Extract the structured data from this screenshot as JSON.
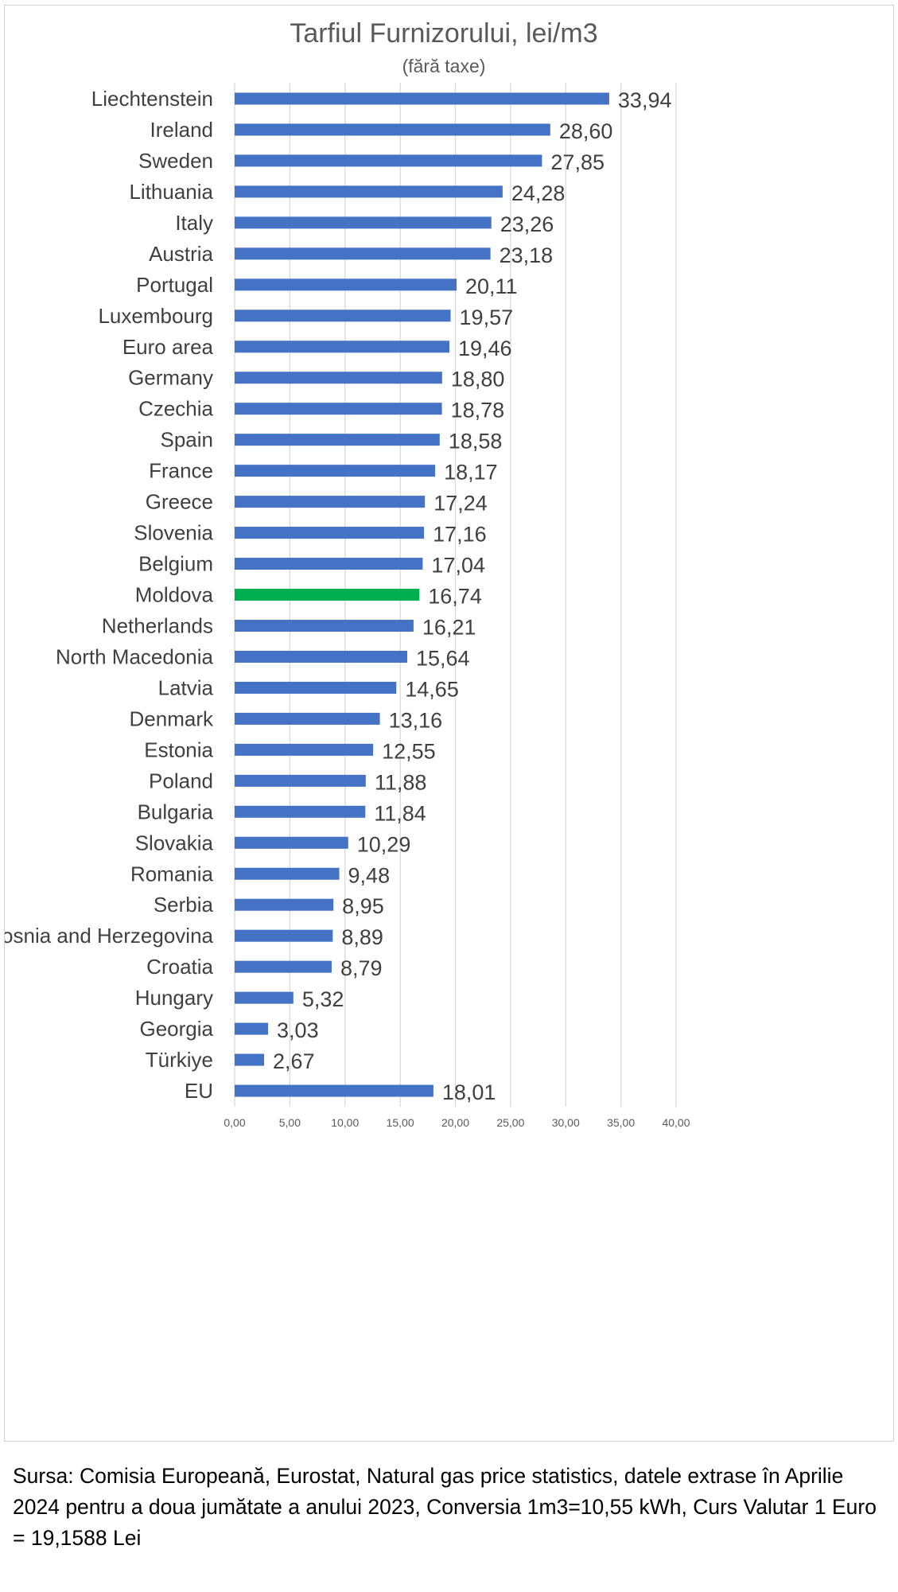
{
  "chart_data": {
    "type": "bar",
    "orientation": "horizontal",
    "title": "Tarfiul Furnizorului, lei/m3",
    "subtitle": "(fără taxe)",
    "categories": [
      "Liechtenstein",
      "Ireland",
      "Sweden",
      "Lithuania",
      "Italy",
      "Austria",
      "Portugal",
      "Luxembourg",
      "Euro area",
      "Germany",
      "Czechia",
      "Spain",
      "France",
      "Greece",
      "Slovenia",
      "Belgium",
      "Moldova",
      "Netherlands",
      "North Macedonia",
      "Latvia",
      "Denmark",
      "Estonia",
      "Poland",
      "Bulgaria",
      "Slovakia",
      "Romania",
      "Serbia",
      "Bosnia and Herzegovina",
      "Croatia",
      "Hungary",
      "Georgia",
      "Türkiye",
      "EU"
    ],
    "values": [
      33.94,
      28.6,
      27.85,
      24.28,
      23.26,
      23.18,
      20.11,
      19.57,
      19.46,
      18.8,
      18.78,
      18.58,
      18.17,
      17.24,
      17.16,
      17.04,
      16.74,
      16.21,
      15.64,
      14.65,
      13.16,
      12.55,
      11.88,
      11.84,
      10.29,
      9.48,
      8.95,
      8.89,
      8.79,
      5.32,
      3.03,
      2.67,
      18.01
    ],
    "value_labels": [
      "33,94",
      "28,60",
      "27,85",
      "24,28",
      "23,26",
      "23,18",
      "20,11",
      "19,57",
      "19,46",
      "18,80",
      "18,78",
      "18,58",
      "18,17",
      "17,24",
      "17,16",
      "17,04",
      "16,74",
      "16,21",
      "15,64",
      "14,65",
      "13,16",
      "12,55",
      "11,88",
      "11,84",
      "10,29",
      "9,48",
      "8,95",
      "8,89",
      "8,79",
      "5,32",
      "3,03",
      "2,67",
      "18,01"
    ],
    "highlight_category": "Moldova",
    "colors": {
      "bar": "#4472C4",
      "highlight": "#00B050",
      "gridline": "#D9D9D9",
      "label_text": "#404040",
      "title_text": "#595959",
      "axis_text": "#595959"
    },
    "xlim": [
      0,
      40
    ],
    "x_ticks": [
      0,
      5,
      10,
      15,
      20,
      25,
      30,
      35,
      40
    ],
    "x_tick_labels": [
      "0,00",
      "5,00",
      "10,00",
      "15,00",
      "20,00",
      "25,00",
      "30,00",
      "35,00",
      "40,00"
    ],
    "grid": true,
    "xlabel": "",
    "ylabel": ""
  },
  "source_note": "Sursa: Comisia Europeană, Eurostat, Natural gas price statistics, datele extrase în Aprilie 2024 pentru a doua jumătate a anului 2023, Conversia 1m3=10,55 kWh, Curs Valutar 1 Euro = 19,1588 Lei"
}
